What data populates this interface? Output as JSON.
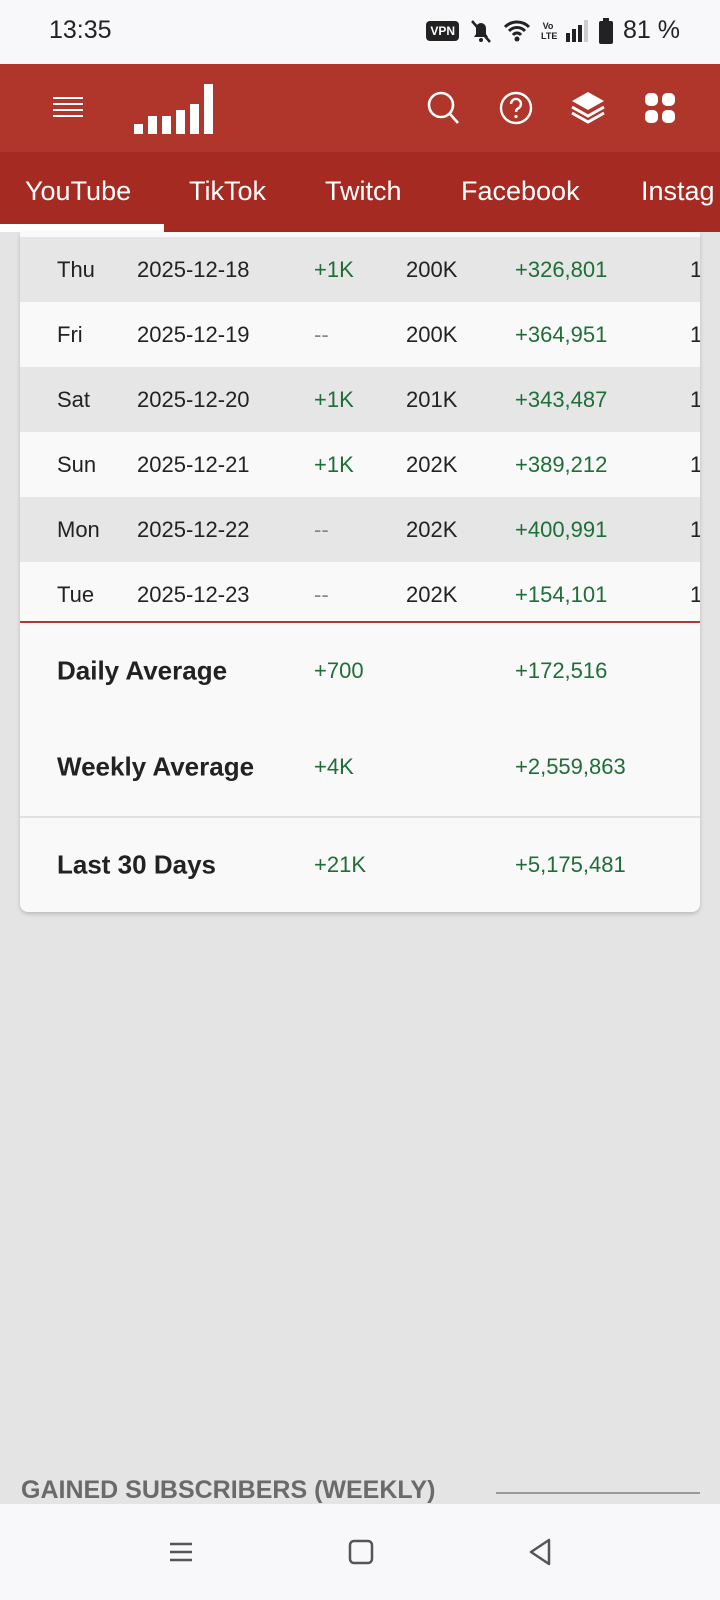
{
  "status_bar": {
    "time": "13:35",
    "vpn": "VPN",
    "volte": "Vo LTE",
    "battery": "81 %",
    "icons": [
      "vpn-icon",
      "bell-off-icon",
      "wifi-icon",
      "volte-icon",
      "signal-icon",
      "battery-icon"
    ]
  },
  "header": {
    "icons": [
      "menu-icon",
      "logo-bars-icon",
      "search-icon",
      "help-icon",
      "layers-icon",
      "apps-grid-icon"
    ]
  },
  "tabs": [
    {
      "label": "YouTube",
      "active": true
    },
    {
      "label": "TikTok"
    },
    {
      "label": "Twitch"
    },
    {
      "label": "Facebook"
    },
    {
      "label": "Instag"
    }
  ],
  "table": {
    "rows": [
      {
        "day": "Thu",
        "date": "2025-12-18",
        "subs_gain": "+1K",
        "subs_total": "200K",
        "views_gain": "+326,801",
        "extra": "1"
      },
      {
        "day": "Fri",
        "date": "2025-12-19",
        "subs_gain": "--",
        "subs_total": "200K",
        "views_gain": "+364,951",
        "extra": "1"
      },
      {
        "day": "Sat",
        "date": "2025-12-20",
        "subs_gain": "+1K",
        "subs_total": "201K",
        "views_gain": "+343,487",
        "extra": "1"
      },
      {
        "day": "Sun",
        "date": "2025-12-21",
        "subs_gain": "+1K",
        "subs_total": "202K",
        "views_gain": "+389,212",
        "extra": "1"
      },
      {
        "day": "Mon",
        "date": "2025-12-22",
        "subs_gain": "--",
        "subs_total": "202K",
        "views_gain": "+400,991",
        "extra": "1"
      },
      {
        "day": "Tue",
        "date": "2025-12-23",
        "subs_gain": "--",
        "subs_total": "202K",
        "views_gain": "+154,101",
        "extra": "1"
      }
    ],
    "summary": [
      {
        "label": "Daily Average",
        "subs": "+700",
        "views": "+172,516"
      },
      {
        "label": "Weekly Average",
        "subs": "+4K",
        "views": "+2,559,863"
      },
      {
        "label": "Last 30 Days",
        "subs": "+21K",
        "views": "+5,175,481"
      }
    ]
  },
  "section_title": "GAINED SUBSCRIBERS (WEEKLY)",
  "colors": {
    "header": "#B0352B",
    "tabs": "#A52A22",
    "positive": "#1E6E38",
    "background": "#E4E4E4"
  },
  "nav_bar": {
    "icons": [
      "recents-icon",
      "home-icon",
      "back-icon"
    ]
  }
}
